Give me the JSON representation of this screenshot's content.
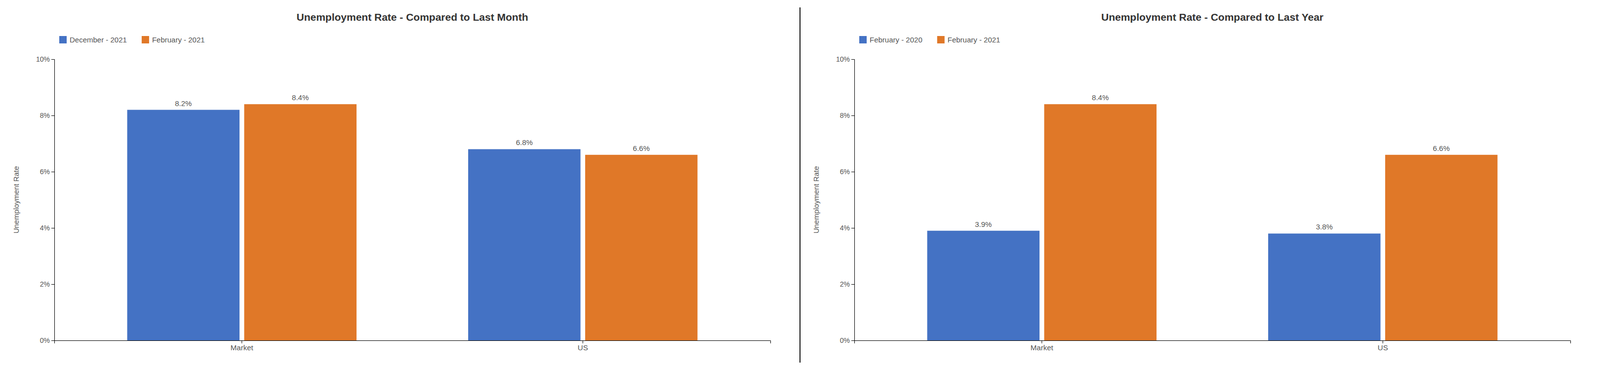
{
  "chart_data": [
    {
      "type": "bar",
      "title": "Unemployment Rate - Compared to Last Month",
      "ylabel": "Unemployment Rate",
      "categories": [
        "Market",
        "US"
      ],
      "series": [
        {
          "name": "December - 2021",
          "color": "#4472C4",
          "values": [
            8.2,
            6.8
          ],
          "value_labels": [
            "8.2%",
            "6.8%"
          ]
        },
        {
          "name": "February - 2021",
          "color": "#E07828",
          "values": [
            8.4,
            6.6
          ],
          "value_labels": [
            "8.4%",
            "6.6%"
          ]
        }
      ],
      "ylim": [
        0,
        10
      ],
      "yticks": [
        {
          "value": 0,
          "label": "0%"
        },
        {
          "value": 2,
          "label": "2%"
        },
        {
          "value": 4,
          "label": "4%"
        },
        {
          "value": 6,
          "label": "6%"
        },
        {
          "value": 8,
          "label": "8%"
        },
        {
          "value": 10,
          "label": "10%"
        }
      ],
      "grid": false,
      "legend": "upper left",
      "data_labels": true
    },
    {
      "type": "bar",
      "title": "Unemployment Rate - Compared to Last Year",
      "ylabel": "Unemployment Rate",
      "categories": [
        "Market",
        "US"
      ],
      "series": [
        {
          "name": "February - 2020",
          "color": "#4472C4",
          "values": [
            3.9,
            3.8
          ],
          "value_labels": [
            "3.9%",
            "3.8%"
          ]
        },
        {
          "name": "February - 2021",
          "color": "#E07828",
          "values": [
            8.4,
            6.6
          ],
          "value_labels": [
            "8.4%",
            "6.6%"
          ]
        }
      ],
      "ylim": [
        0,
        10
      ],
      "yticks": [
        {
          "value": 0,
          "label": "0%"
        },
        {
          "value": 2,
          "label": "2%"
        },
        {
          "value": 4,
          "label": "4%"
        },
        {
          "value": 6,
          "label": "6%"
        },
        {
          "value": 8,
          "label": "8%"
        },
        {
          "value": 10,
          "label": "10%"
        }
      ],
      "grid": false,
      "legend": "upper left",
      "data_labels": true
    }
  ]
}
